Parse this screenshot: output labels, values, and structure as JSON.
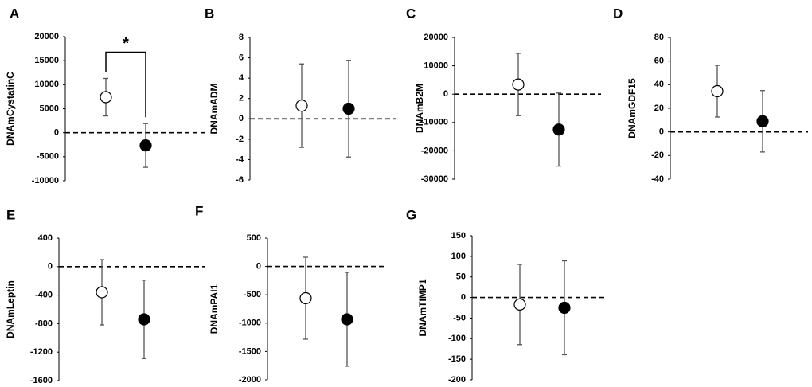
{
  "chart_data": [
    {
      "type": "errorbar",
      "panel": "A",
      "ylabel": "DNAmCystatinC",
      "categories": [
        null,
        null
      ],
      "values": [
        7400,
        -2650
      ],
      "errors": [
        3900,
        4550
      ],
      "marker_fill": [
        "#ffffff",
        "#000000"
      ],
      "ylim": [
        -10000,
        20000
      ],
      "yticks": [
        -10000,
        -5000,
        0,
        5000,
        10000,
        15000,
        20000
      ],
      "significance": "*"
    },
    {
      "type": "errorbar",
      "panel": "B",
      "ylabel": "DNAmADM",
      "categories": [
        null,
        null
      ],
      "values": [
        1.3,
        1.0
      ],
      "errors": [
        4.1,
        4.75
      ],
      "marker_fill": [
        "#ffffff",
        "#000000"
      ],
      "ylim": [
        -6,
        8
      ],
      "yticks": [
        -6,
        -4,
        -2,
        0,
        2,
        4,
        6,
        8
      ]
    },
    {
      "type": "errorbar",
      "panel": "C",
      "ylabel": "DNAmB2M",
      "categories": [
        null,
        null
      ],
      "values": [
        3400,
        -12500
      ],
      "errors": [
        11000,
        12900
      ],
      "marker_fill": [
        "#ffffff",
        "#000000"
      ],
      "ylim": [
        -30000,
        20000
      ],
      "yticks": [
        -30000,
        -20000,
        -10000,
        0,
        10000,
        20000
      ]
    },
    {
      "type": "errorbar",
      "panel": "D",
      "ylabel": "DNAmGDF15",
      "categories": [
        null,
        null
      ],
      "values": [
        34.5,
        9
      ],
      "errors": [
        21.9,
        26
      ],
      "marker_fill": [
        "#ffffff",
        "#000000"
      ],
      "ylim": [
        -40,
        80
      ],
      "yticks": [
        -40,
        -20,
        0,
        20,
        40,
        60,
        80
      ]
    },
    {
      "type": "errorbar",
      "panel": "E",
      "ylabel": "DNAmLeptin",
      "categories": [
        null,
        null
      ],
      "values": [
        -360,
        -740
      ],
      "errors": [
        458,
        550
      ],
      "marker_fill": [
        "#ffffff",
        "#000000"
      ],
      "ylim": [
        -1600,
        400
      ],
      "yticks": [
        -1600,
        -1200,
        -800,
        -400,
        0,
        400
      ]
    },
    {
      "type": "errorbar",
      "panel": "F",
      "ylabel": "DNAmPAI1",
      "categories": [
        null,
        null
      ],
      "values": [
        -560,
        -932
      ],
      "errors": [
        723,
        828
      ],
      "marker_fill": [
        "#ffffff",
        "#000000"
      ],
      "ylim": [
        -2000,
        500
      ],
      "yticks": [
        -2000,
        -1500,
        -1000,
        -500,
        0,
        500
      ]
    },
    {
      "type": "errorbar",
      "panel": "G",
      "ylabel": "DNAmTIMP1",
      "categories": [
        null,
        null
      ],
      "values": [
        -17,
        -25
      ],
      "errors": [
        97.5,
        114
      ],
      "marker_fill": [
        "#ffffff",
        "#000000"
      ],
      "ylim": [
        -200,
        150
      ],
      "yticks": [
        -200,
        -150,
        -100,
        -50,
        0,
        50,
        100,
        150
      ]
    }
  ]
}
